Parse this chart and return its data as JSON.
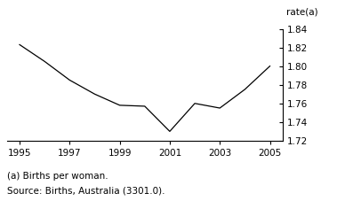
{
  "x": [
    1995,
    1996,
    1997,
    1998,
    1999,
    2000,
    2001,
    2002,
    2003,
    2004,
    2005
  ],
  "y": [
    1.823,
    1.805,
    1.785,
    1.77,
    1.758,
    1.757,
    1.73,
    1.76,
    1.755,
    1.775,
    1.8
  ],
  "xlim": [
    1994.5,
    2005.5
  ],
  "ylim": [
    1.72,
    1.845
  ],
  "yticks": [
    1.72,
    1.74,
    1.76,
    1.78,
    1.8,
    1.82,
    1.84
  ],
  "xticks": [
    1995,
    1997,
    1999,
    2001,
    2003,
    2005
  ],
  "ylabel": "rate(a)",
  "footnote1": "(a) Births per woman.",
  "footnote2": "Source: Births, Australia (3301.0).",
  "line_color": "#000000",
  "bg_color": "#ffffff",
  "tick_fontsize": 7.5,
  "label_fontsize": 7.5,
  "footnote_fontsize": 7.5
}
